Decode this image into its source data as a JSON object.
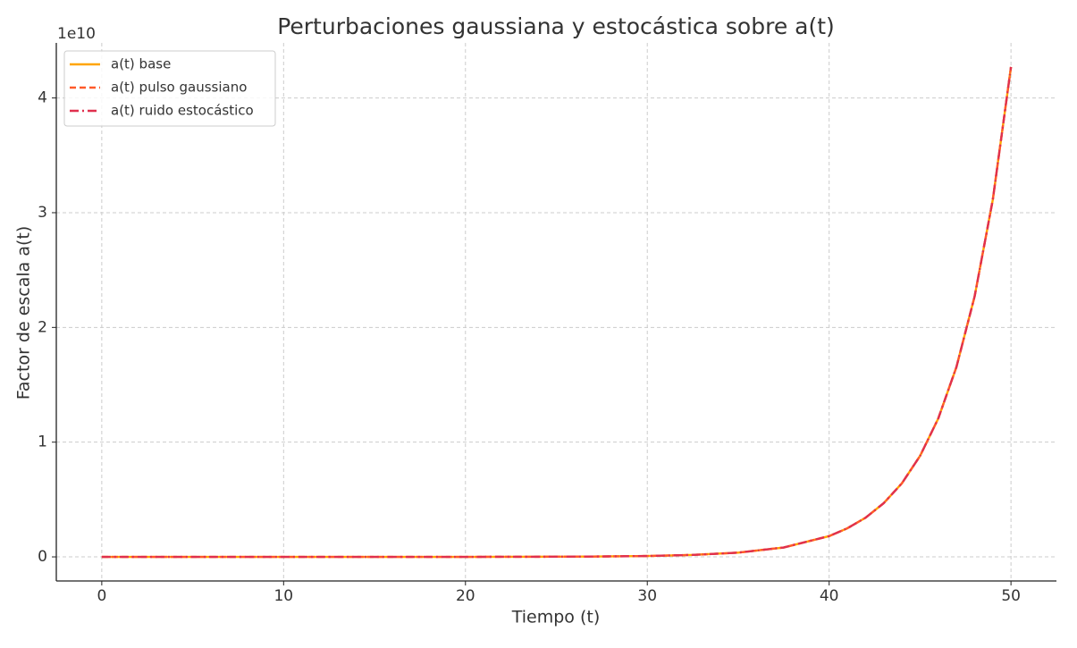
{
  "chart_data": {
    "type": "line",
    "title": "Perturbaciones gaussiana y estocástica sobre a(t)",
    "xlabel": "Tiempo (t)",
    "ylabel": "Factor de escala a(t)",
    "y_offset_label": "1e10",
    "x": [
      0,
      5,
      10,
      15,
      20,
      25,
      27.5,
      30,
      32.5,
      35,
      37.5,
      40,
      41,
      42,
      43,
      44,
      45,
      46,
      47,
      48,
      49,
      50
    ],
    "series": [
      {
        "name": "a(t) base",
        "color": "#ffa500",
        "style": "solid",
        "values": [
          0,
          0,
          0,
          0,
          0,
          0.0016,
          0.0035,
          0.0077,
          0.017,
          0.037,
          0.082,
          0.181,
          0.249,
          0.341,
          0.468,
          0.641,
          0.88,
          1.206,
          1.655,
          2.27,
          3.113,
          4.27
        ]
      },
      {
        "name": "a(t) pulso gaussiano",
        "color": "#ff5a2a",
        "style": "dashed",
        "values": [
          0,
          0,
          0,
          0,
          0,
          0.0016,
          0.0035,
          0.0077,
          0.017,
          0.037,
          0.082,
          0.181,
          0.249,
          0.341,
          0.468,
          0.641,
          0.88,
          1.206,
          1.655,
          2.27,
          3.113,
          4.27
        ]
      },
      {
        "name": "a(t) ruido estocástico",
        "color": "#e0304e",
        "style": "dashdot",
        "values": [
          0,
          0,
          0,
          0,
          0,
          0.0016,
          0.0035,
          0.0077,
          0.017,
          0.037,
          0.082,
          0.181,
          0.249,
          0.341,
          0.468,
          0.641,
          0.88,
          1.206,
          1.655,
          2.27,
          3.113,
          4.27
        ]
      }
    ],
    "xlim": [
      -2.5,
      52.5
    ],
    "xticks": [
      0,
      10,
      20,
      30,
      40,
      50
    ],
    "ylim": [
      -0.21,
      4.48
    ],
    "yticks": [
      0,
      1,
      2,
      3,
      4
    ],
    "grid": true,
    "legend": "upper left"
  }
}
